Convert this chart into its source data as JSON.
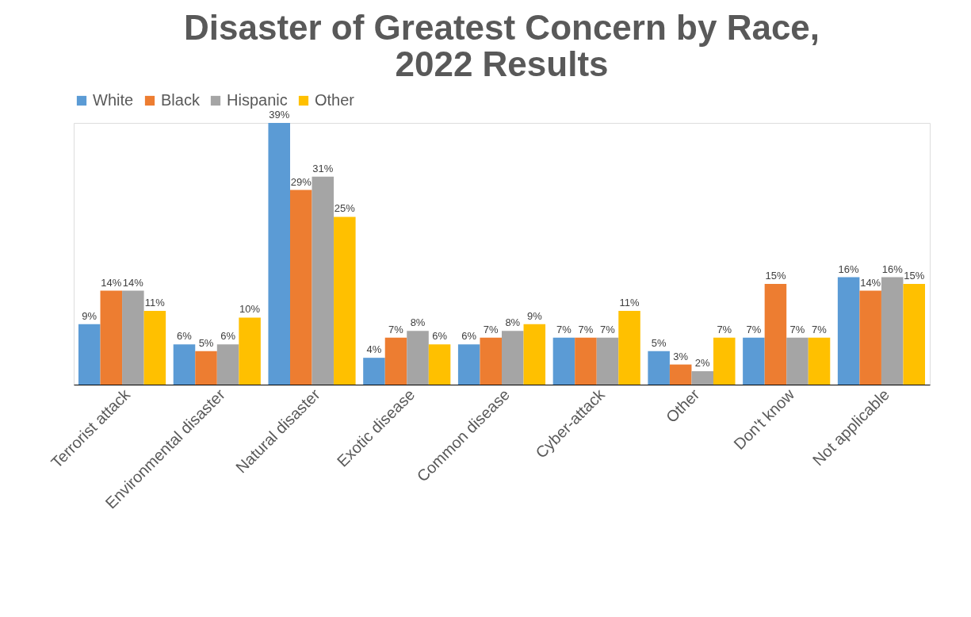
{
  "chart_data": {
    "type": "bar",
    "title": [
      "Disaster of Greatest Concern by Race,",
      "2022 Results"
    ],
    "categories": [
      "Terrorist attack",
      "Environmental disaster",
      "Natural disaster",
      "Exotic disease",
      "Common disease",
      "Cyber-attack",
      "Other",
      "Don't know",
      "Not applicable"
    ],
    "series": [
      {
        "name": "White",
        "color": "#5b9bd5",
        "values": [
          9,
          6,
          39,
          4,
          6,
          7,
          5,
          7,
          16
        ],
        "value_labels": [
          "9%",
          "6%",
          "39%",
          "4%",
          "6%",
          "7%",
          "5%",
          "7%",
          "16%"
        ]
      },
      {
        "name": "Black",
        "color": "#ed7d31",
        "values": [
          14,
          5,
          29,
          7,
          7,
          7,
          3,
          15,
          14
        ],
        "value_labels": [
          "14%",
          "5%",
          "29%",
          "7%",
          "7%",
          "7%",
          "3%",
          "15%",
          "14%"
        ]
      },
      {
        "name": "Hispanic",
        "color": "#a5a5a5",
        "values": [
          14,
          6,
          31,
          8,
          8,
          7,
          2,
          7,
          16
        ],
        "value_labels": [
          "14%",
          "6%",
          "31%",
          "8%",
          "8%",
          "7%",
          "2%",
          "7%",
          "16%"
        ]
      },
      {
        "name": "Other",
        "color": "#ffc000",
        "values": [
          11,
          10,
          25,
          6,
          9,
          11,
          7,
          7,
          15
        ],
        "value_labels": [
          "11%",
          "10%",
          "25%",
          "6%",
          "9%",
          "11%",
          "7%",
          "7%",
          "15%"
        ]
      }
    ],
    "legend": "top",
    "grid": false,
    "tick_labels": "x"
  }
}
